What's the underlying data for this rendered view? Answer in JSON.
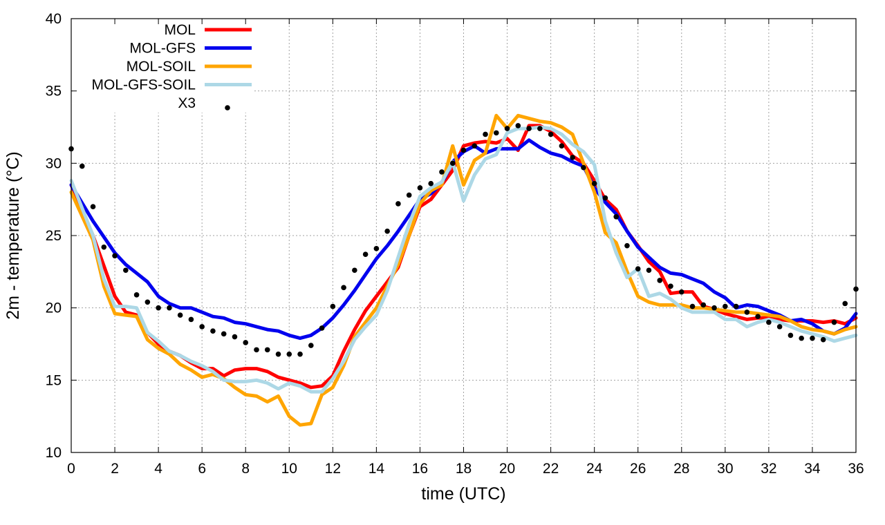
{
  "chart_data": {
    "type": "line",
    "xlabel": "time (UTC)",
    "ylabel": "2m - temperature (°C)",
    "xlim": [
      0,
      36
    ],
    "ylim": [
      10,
      40
    ],
    "xticks": [
      0,
      2,
      4,
      6,
      8,
      10,
      12,
      14,
      16,
      18,
      20,
      22,
      24,
      26,
      28,
      30,
      32,
      34,
      36
    ],
    "yticks": [
      10,
      15,
      20,
      25,
      30,
      35,
      40
    ],
    "grid": true,
    "legend_position": "top-left",
    "series": [
      {
        "name": "MOL",
        "color": "#ff0000",
        "style": "line",
        "x": [
          0,
          1,
          2,
          2.5,
          3,
          3.5,
          4,
          4.5,
          5,
          5.5,
          6,
          6.5,
          7,
          7.5,
          8,
          8.5,
          9,
          9.5,
          10,
          10.5,
          11,
          11.5,
          12,
          12.5,
          13,
          13.5,
          14,
          14.5,
          15,
          15.5,
          16,
          16.5,
          17,
          17.5,
          18,
          18.5,
          19,
          19.5,
          20,
          20.5,
          21,
          21.5,
          22,
          22.5,
          23,
          23.5,
          24,
          24.5,
          25,
          25.5,
          26,
          26.5,
          27,
          27.5,
          28,
          28.5,
          29,
          29.5,
          30,
          30.5,
          31,
          31.5,
          32,
          32.5,
          33,
          33.5,
          34,
          34.5,
          35,
          35.5,
          36
        ],
        "y": [
          28.5,
          25.0,
          20.8,
          19.7,
          19.5,
          18.3,
          17.5,
          17.0,
          16.7,
          16.2,
          15.8,
          15.8,
          15.3,
          15.7,
          15.8,
          15.8,
          15.6,
          15.2,
          15.0,
          14.8,
          14.5,
          14.6,
          15.3,
          17.0,
          18.5,
          19.8,
          20.8,
          21.8,
          22.8,
          25.0,
          27.0,
          27.5,
          28.5,
          29.5,
          31.2,
          31.4,
          31.5,
          31.4,
          31.7,
          30.9,
          32.6,
          32.6,
          32.2,
          31.5,
          30.5,
          30.0,
          28.8,
          27.5,
          26.8,
          25.3,
          24.3,
          23.2,
          22.5,
          21.0,
          21.1,
          21.1,
          20.1,
          19.9,
          19.6,
          19.4,
          19.2,
          19.3,
          19.3,
          19.2,
          19.1,
          19.1,
          19.1,
          19.0,
          19.1,
          18.9,
          19.3
        ]
      },
      {
        "name": "MOL-GFS",
        "color": "#0000ee",
        "style": "line",
        "x": [
          0,
          1,
          2,
          2.5,
          3,
          3.5,
          4,
          4.5,
          5,
          5.5,
          6,
          6.5,
          7,
          7.5,
          8,
          8.5,
          9,
          9.5,
          10,
          10.5,
          11,
          11.5,
          12,
          12.5,
          13,
          13.5,
          14,
          14.5,
          15,
          15.5,
          16,
          16.5,
          17,
          17.5,
          18,
          18.5,
          19,
          19.5,
          20,
          20.5,
          21,
          21.5,
          22,
          22.5,
          23,
          23.5,
          24,
          24.5,
          25,
          25.5,
          26,
          26.5,
          27,
          27.5,
          28,
          28.5,
          29,
          29.5,
          30,
          30.5,
          31,
          31.5,
          32,
          32.5,
          33,
          33.5,
          34,
          34.5,
          35,
          35.5,
          36
        ],
        "y": [
          28.5,
          26.0,
          23.8,
          23.0,
          22.4,
          21.8,
          20.8,
          20.3,
          20.0,
          20.0,
          19.7,
          19.4,
          19.3,
          19.0,
          18.9,
          18.7,
          18.5,
          18.4,
          18.1,
          17.9,
          18.1,
          18.6,
          19.3,
          20.2,
          21.2,
          22.3,
          23.4,
          24.3,
          25.3,
          26.4,
          27.5,
          27.9,
          28.6,
          30.1,
          30.8,
          31.2,
          30.7,
          31.0,
          31.0,
          31.0,
          31.6,
          31.1,
          30.7,
          30.5,
          30.1,
          29.8,
          28.3,
          27.3,
          26.5,
          25.3,
          24.2,
          23.5,
          22.8,
          22.4,
          22.3,
          22.0,
          21.7,
          21.1,
          20.7,
          20.0,
          20.2,
          20.1,
          19.8,
          19.5,
          19.1,
          19.2,
          18.9,
          18.4,
          18.2,
          18.6,
          19.6
        ]
      },
      {
        "name": "MOL-SOIL",
        "color": "#ffa500",
        "style": "line",
        "x": [
          0,
          1,
          1.5,
          2,
          2.5,
          3,
          3.5,
          4,
          4.5,
          5,
          5.5,
          6,
          6.5,
          7,
          7.5,
          8,
          8.5,
          9,
          9.5,
          10,
          10.5,
          11,
          11.5,
          12,
          12.5,
          13,
          13.5,
          14,
          14.5,
          15,
          15.5,
          16,
          16.5,
          17,
          17.5,
          18,
          18.5,
          19,
          19.5,
          20,
          20.5,
          21,
          21.5,
          22,
          22.5,
          23,
          23.5,
          24,
          24.5,
          25,
          25.5,
          26,
          26.5,
          27,
          27.5,
          28,
          28.5,
          29,
          29.5,
          30,
          30.5,
          31,
          31.5,
          32,
          32.5,
          33,
          33.5,
          34,
          34.5,
          35,
          35.5,
          36
        ],
        "y": [
          28.0,
          24.7,
          21.5,
          19.6,
          19.5,
          19.4,
          17.8,
          17.2,
          16.8,
          16.1,
          15.7,
          15.2,
          15.4,
          15.1,
          14.5,
          14.0,
          13.9,
          13.5,
          13.9,
          12.5,
          11.9,
          12.0,
          14.0,
          14.5,
          16.0,
          18.0,
          19.0,
          20.0,
          21.5,
          23.0,
          25.0,
          27.2,
          28.1,
          28.5,
          31.2,
          28.5,
          30.2,
          30.7,
          33.3,
          32.4,
          33.3,
          33.1,
          32.9,
          32.8,
          32.5,
          32.0,
          30.0,
          28.0,
          25.2,
          24.5,
          22.5,
          20.8,
          20.4,
          20.2,
          20.2,
          20.2,
          20.0,
          20.0,
          19.9,
          19.8,
          19.7,
          19.7,
          19.6,
          19.5,
          19.4,
          19.1,
          18.7,
          18.5,
          18.4,
          18.2,
          18.5,
          18.7
        ]
      },
      {
        "name": "MOL-GFS-SOIL",
        "color": "#add8e6",
        "style": "line",
        "x": [
          0,
          1,
          1.5,
          2,
          2.5,
          3,
          3.5,
          4,
          4.5,
          5,
          5.5,
          6,
          6.5,
          7,
          7.5,
          8,
          8.5,
          9,
          9.5,
          10,
          10.5,
          11,
          11.5,
          12,
          12.5,
          13,
          13.5,
          14,
          14.5,
          15,
          15.5,
          16,
          16.5,
          17,
          17.5,
          18,
          18.5,
          19,
          19.5,
          20,
          20.5,
          21,
          21.5,
          22,
          22.5,
          23,
          23.5,
          24,
          24.5,
          25,
          25.5,
          26,
          26.5,
          27,
          27.5,
          28,
          28.5,
          29,
          29.5,
          30,
          30.5,
          31,
          31.5,
          32,
          32.5,
          33,
          33.5,
          34,
          34.5,
          35,
          35.5,
          36
        ],
        "y": [
          28.8,
          25.0,
          22.0,
          20.1,
          20.1,
          20.0,
          18.3,
          17.7,
          17.0,
          16.7,
          16.3,
          16.0,
          15.6,
          15.0,
          14.9,
          14.9,
          15.0,
          14.8,
          14.4,
          14.8,
          14.6,
          14.2,
          14.2,
          15.1,
          16.3,
          17.8,
          18.7,
          19.5,
          21.2,
          23.5,
          25.8,
          27.7,
          28.3,
          28.7,
          30.1,
          27.4,
          29.2,
          30.3,
          30.6,
          32.1,
          32.4,
          32.4,
          32.5,
          32.4,
          32.0,
          31.3,
          30.8,
          29.9,
          26.0,
          23.8,
          22.1,
          22.7,
          20.8,
          21.0,
          20.6,
          20.0,
          19.7,
          19.7,
          19.7,
          19.2,
          19.2,
          18.7,
          19.0,
          19.2,
          19.0,
          18.7,
          18.4,
          18.2,
          18.0,
          17.7,
          17.9,
          18.1
        ]
      },
      {
        "name": "X3",
        "color": "#000000",
        "style": "points",
        "x": [
          0,
          0.5,
          1,
          1.5,
          2,
          2.5,
          3,
          3.5,
          4,
          4.5,
          5,
          5.5,
          6,
          6.5,
          7,
          7.5,
          8,
          8.5,
          9,
          9.5,
          10,
          10.5,
          11,
          11.5,
          12,
          12.5,
          13,
          13.5,
          14,
          14.5,
          15,
          15.5,
          16,
          16.5,
          17,
          17.5,
          18,
          18.5,
          19,
          19.5,
          20,
          20.5,
          21,
          21.5,
          22,
          22.5,
          23,
          23.5,
          24,
          24.5,
          25,
          25.5,
          26,
          26.5,
          27,
          27.5,
          28,
          28.5,
          29,
          29.5,
          30,
          30.5,
          31,
          31.5,
          32,
          32.5,
          33,
          33.5,
          34,
          34.5,
          35,
          35.5,
          36
        ],
        "y": [
          31.0,
          29.8,
          27.0,
          24.2,
          23.6,
          22.6,
          20.9,
          20.4,
          20.0,
          20.0,
          19.5,
          19.2,
          18.7,
          18.4,
          18.2,
          18.0,
          17.6,
          17.1,
          17.1,
          16.8,
          16.8,
          16.8,
          17.4,
          18.6,
          20.1,
          21.4,
          22.6,
          23.7,
          24.1,
          25.3,
          27.2,
          27.8,
          28.3,
          28.6,
          29.4,
          30.0,
          30.9,
          31.2,
          32.0,
          32.1,
          32.4,
          32.6,
          32.4,
          32.4,
          32.0,
          31.2,
          30.4,
          29.7,
          28.6,
          27.6,
          26.3,
          24.3,
          22.7,
          22.6,
          21.9,
          21.5,
          21.1,
          20.1,
          20.2,
          20.0,
          20.1,
          20.1,
          19.7,
          19.4,
          19.0,
          18.7,
          18.1,
          17.9,
          17.9,
          17.8,
          19.0,
          20.3,
          21.3
        ]
      }
    ]
  }
}
